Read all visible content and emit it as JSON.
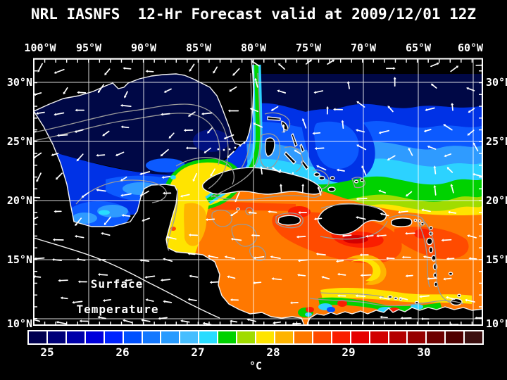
{
  "title": "NRL IASNFS  12-Hr Forecast valid at 2009/12/01 12Z",
  "axes": {
    "top": [
      "100°W",
      "95°W",
      "90°W",
      "85°W",
      "80°W",
      "75°W",
      "70°W",
      "65°W",
      "60°W"
    ],
    "left": [
      "30°N",
      "25°N",
      "20°N",
      "15°N",
      "10°N"
    ],
    "right": [
      "30°N",
      "25°N",
      "20°N",
      "15°N",
      "10°N"
    ]
  },
  "overlay": {
    "line1": "Surface",
    "line2": "Temperature"
  },
  "colorbar": {
    "unit": "°C",
    "ticks": [
      "25",
      "26",
      "27",
      "28",
      "29",
      "30"
    ],
    "cells": [
      "#000050",
      "#000078",
      "#0000aa",
      "#0000dc",
      "#0023ff",
      "#0050ff",
      "#1478ff",
      "#289bff",
      "#46beff",
      "#28dcff",
      "#00d200",
      "#a0dc00",
      "#ffe400",
      "#ffb400",
      "#ff7800",
      "#ff4b00",
      "#fa1e00",
      "#e60000",
      "#d20000",
      "#b40000",
      "#960000",
      "#6e0000",
      "#500000",
      "#3c0f0f"
    ]
  },
  "chart_data": {
    "type": "heatmap",
    "title": "NRL IASNFS 12-Hr Forecast valid at 2009/12/01 12Z",
    "field_label": "Surface Temperature",
    "colorbar_unit": "°C",
    "colorbar_ticks": [
      25,
      26,
      27,
      28,
      29,
      30
    ],
    "lon_ticks_deg_w": [
      100,
      95,
      90,
      85,
      80,
      75,
      70,
      65,
      60
    ],
    "lat_ticks_deg_n": [
      30,
      25,
      20,
      15,
      10
    ],
    "palette_note": "24-step blue-to-dark-red scale, ~0.25°C per cell, 25–30°C labeled"
  }
}
